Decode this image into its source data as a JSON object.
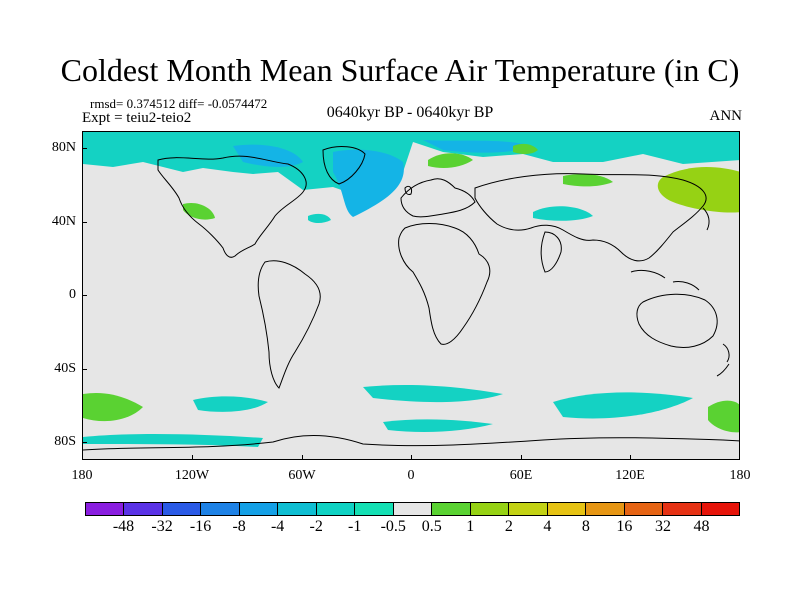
{
  "title": "Coldest Month Mean Surface Air Temperature (in C)",
  "stats": "rmsd= 0.374512 diff= -0.0574472",
  "experiment": "Expt = teiu2-teio2",
  "period": "0640kyr BP - 0640kyr BP",
  "season": "ANN",
  "lat_labels": [
    "80N",
    "40N",
    "0",
    "40S",
    "80S"
  ],
  "lon_labels": [
    "180",
    "120W",
    "60W",
    "0",
    "60E",
    "120E",
    "180"
  ],
  "colorbar": {
    "labels": [
      "-48",
      "-32",
      "-16",
      "-8",
      "-4",
      "-2",
      "-1",
      "-0.5",
      "0.5",
      "1",
      "2",
      "4",
      "8",
      "16",
      "32",
      "48"
    ],
    "colors": [
      "#8a1ee0",
      "#5a32e6",
      "#2a5ae6",
      "#1e82e6",
      "#14a0e6",
      "#0fbed2",
      "#0fd2c3",
      "#14e0b4",
      "#e6e6e6",
      "#5ad232",
      "#96d214",
      "#c3d214",
      "#e6c314",
      "#e69614",
      "#e66414",
      "#e63214",
      "#e6140a"
    ]
  },
  "map_colors": {
    "background": "#e6e6e6",
    "cool_1": "#14d2c3",
    "cool_2": "#14b4e6",
    "warm_1": "#5ad232",
    "warm_2": "#96d214"
  }
}
